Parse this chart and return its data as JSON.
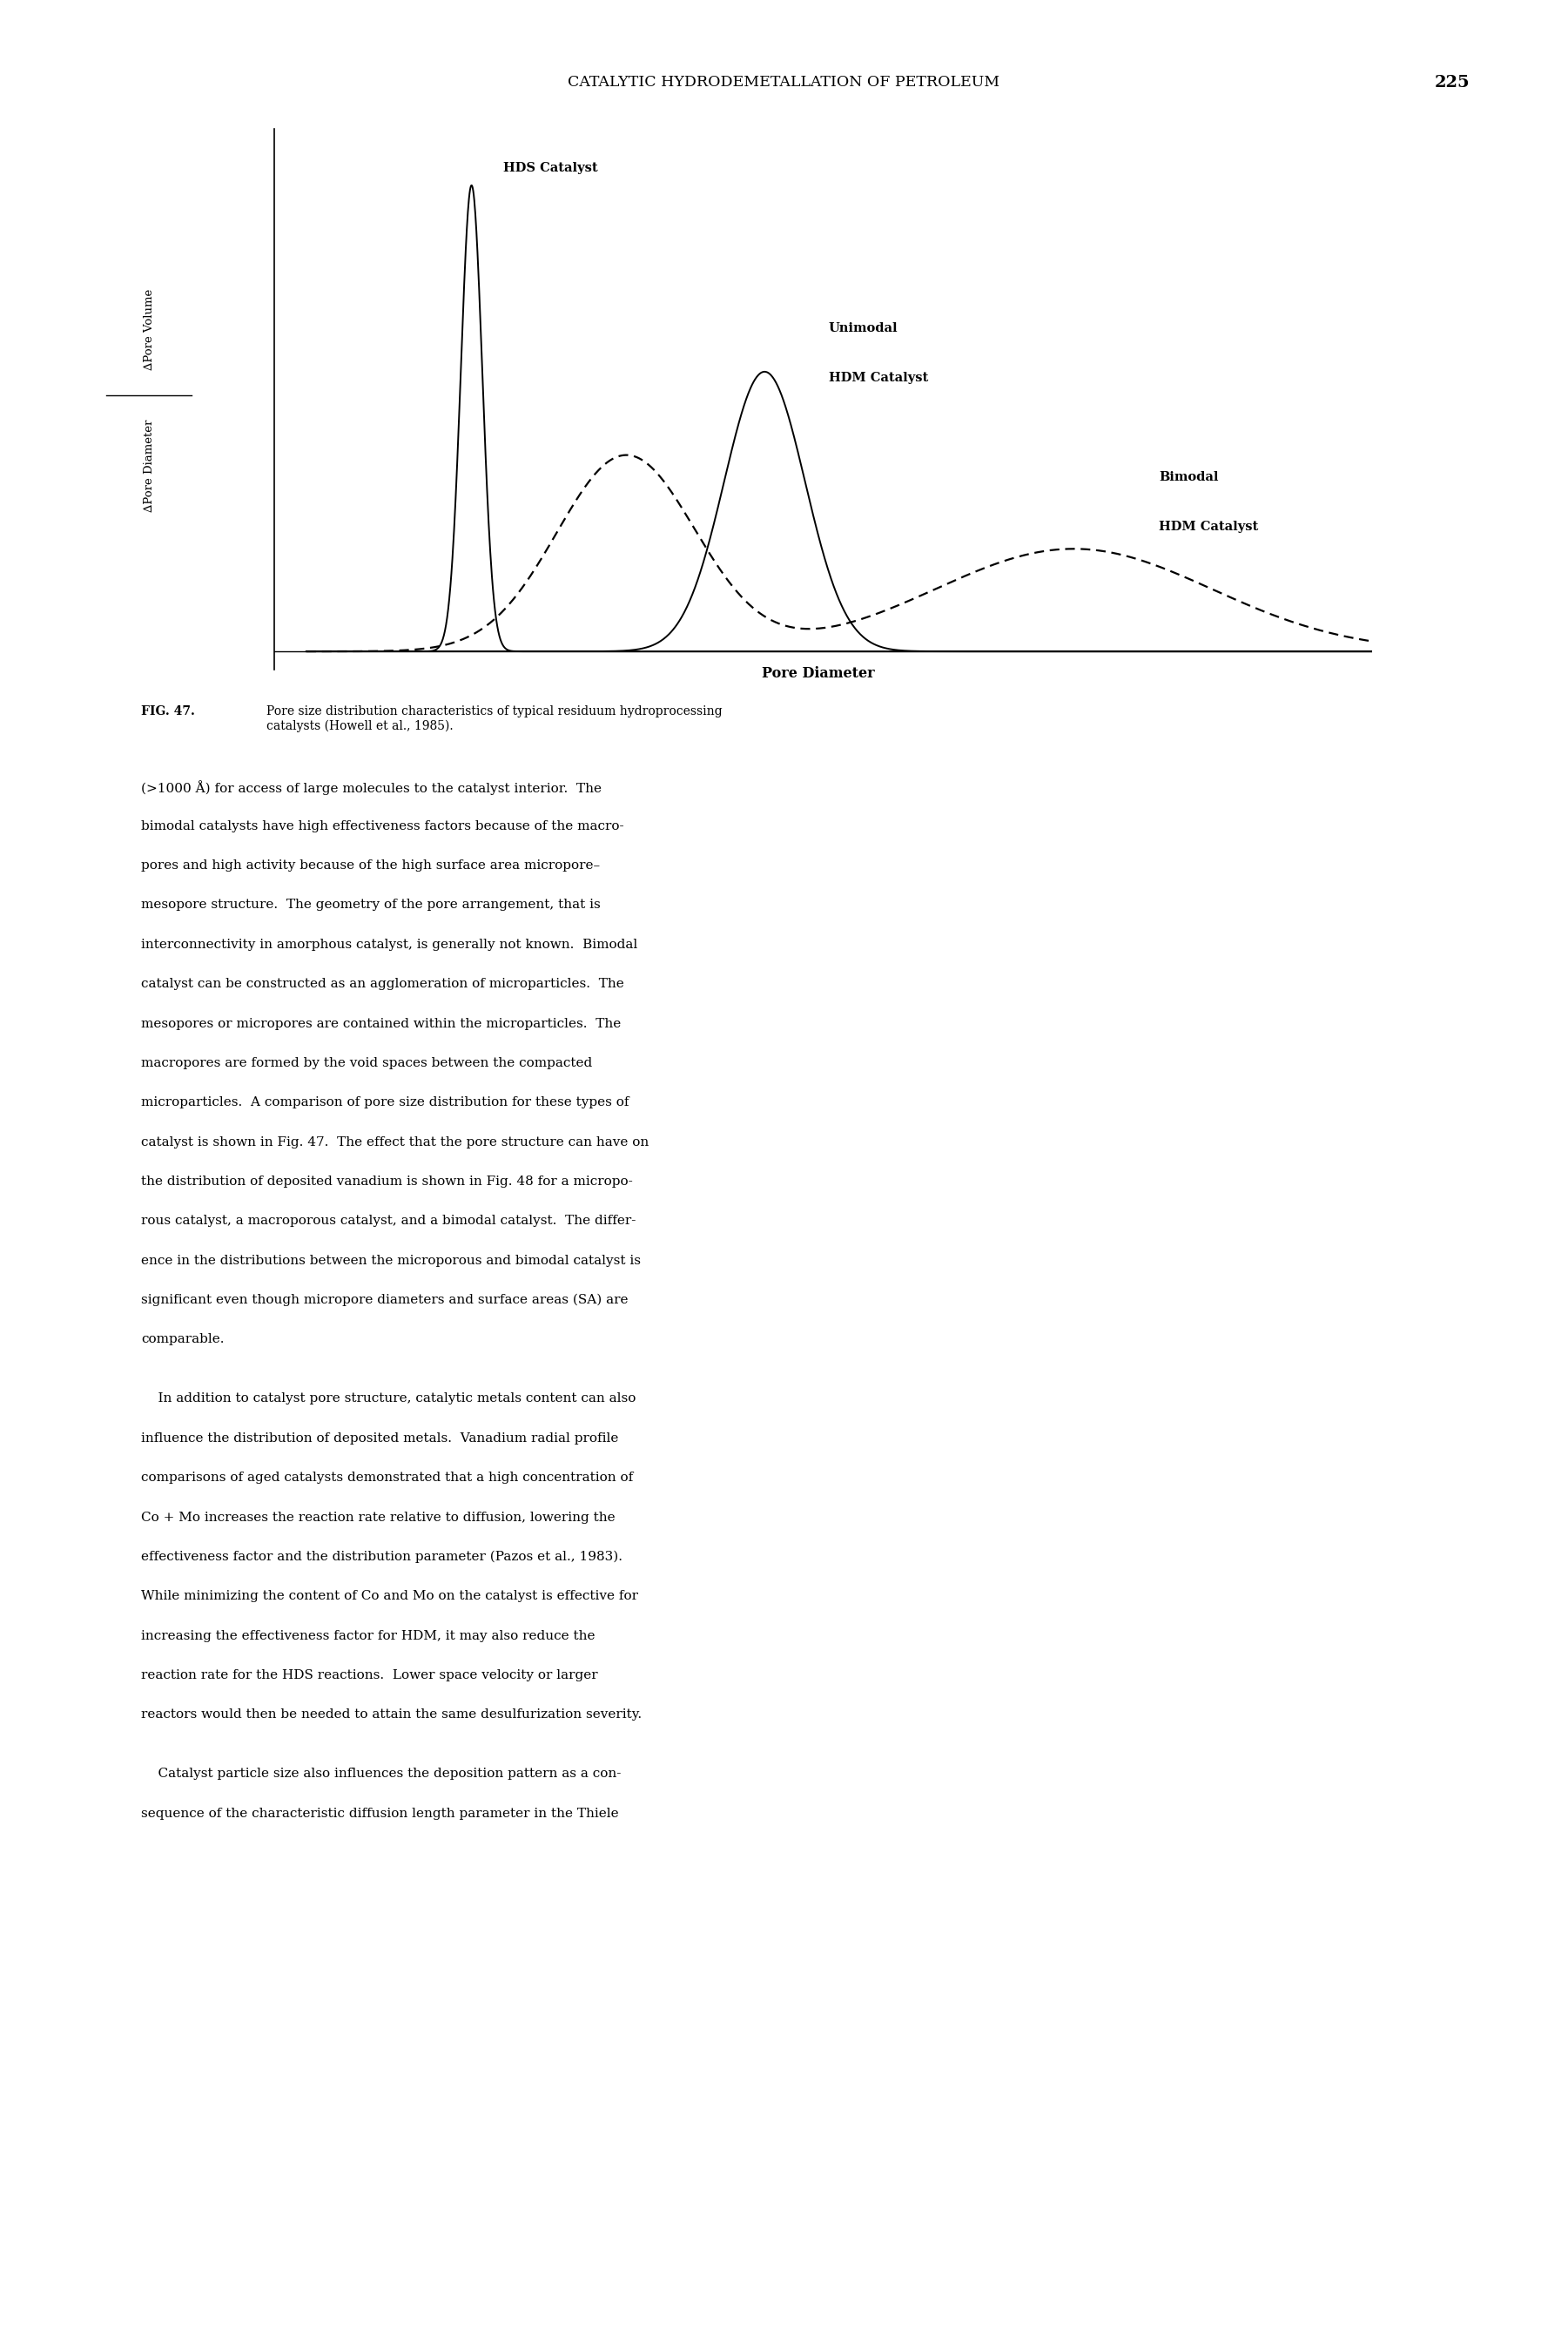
{
  "page_header": "CATALYTIC HYDRODEMETALLATION OF PETROLEUM",
  "page_number": "225",
  "xlabel": "Pore Diameter",
  "ylabel_top": "∆Pore Volume",
  "ylabel_bottom": "∆Pore Diameter",
  "label_hds": "HDS Catalyst",
  "label_unimodal_line1": "Unimodal",
  "label_unimodal_line2": "HDM Catalyst",
  "label_bimodal_line1": "Bimodal",
  "label_bimodal_line2": "HDM Catalyst",
  "body_para1": [
    "(>1000 Å) for access of large molecules to the catalyst interior.  The",
    "bimodal catalysts have high effectiveness factors because of the macro-",
    "pores and high activity because of the high surface area micropore–",
    "mesopore structure.  The geometry of the pore arrangement, that is",
    "interconnectivity in amorphous catalyst, is generally not known.  Bimodal",
    "catalyst can be constructed as an agglomeration of microparticles.  The",
    "mesopores or micropores are contained within the microparticles.  The",
    "macropores are formed by the void spaces between the compacted",
    "microparticles.  A comparison of pore size distribution for these types of",
    "catalyst is shown in Fig. 47.  The effect that the pore structure can have on",
    "the distribution of deposited vanadium is shown in Fig. 48 for a micropo-",
    "rous catalyst, a macroporous catalyst, and a bimodal catalyst.  The differ-",
    "ence in the distributions between the microporous and bimodal catalyst is",
    "significant even though micropore diameters and surface areas (SA) are",
    "comparable."
  ],
  "body_para2": [
    "    In addition to catalyst pore structure, catalytic metals content can also",
    "influence the distribution of deposited metals.  Vanadium radial profile",
    "comparisons of aged catalysts demonstrated that a high concentration of",
    "Co + Mo increases the reaction rate relative to diffusion, lowering the",
    "effectiveness factor and the distribution parameter (Pazos et al., 1983).",
    "While minimizing the content of Co and Mo on the catalyst is effective for",
    "increasing the effectiveness factor for HDM, it may also reduce the",
    "reaction rate for the HDS reactions.  Lower space velocity or larger",
    "reactors would then be needed to attain the same desulfurization severity."
  ],
  "body_para3": [
    "    Catalyst particle size also influences the deposition pattern as a con-",
    "sequence of the characteristic diffusion length parameter in the Thiele"
  ]
}
